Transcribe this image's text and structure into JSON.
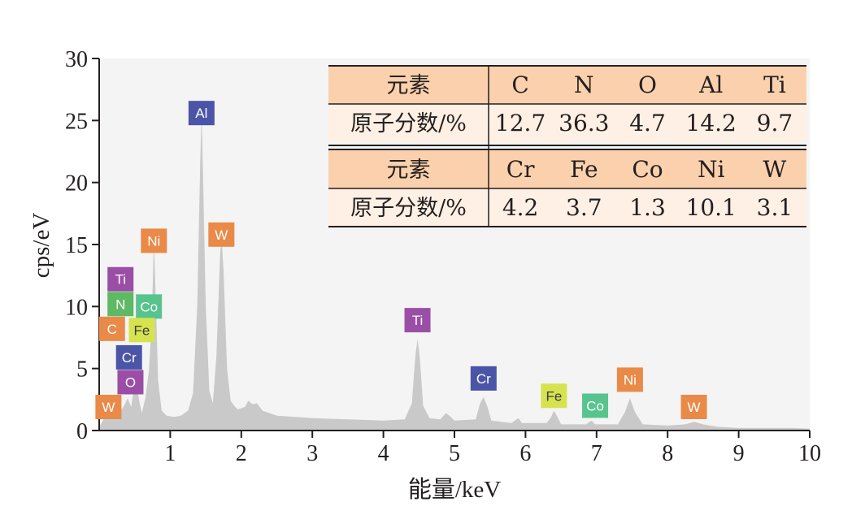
{
  "chart_data": {
    "type": "line",
    "xlabel": "能量/keV",
    "ylabel": "cps/eV",
    "xlim": [
      0,
      10
    ],
    "ylim": [
      0,
      30
    ],
    "x_ticks": [
      1,
      2,
      3,
      4,
      5,
      6,
      7,
      8,
      9,
      10
    ],
    "y_ticks": [
      0,
      5,
      10,
      15,
      20,
      25,
      30
    ],
    "spectrum": [
      [
        0.0,
        0.3
      ],
      [
        0.05,
        0.8
      ],
      [
        0.1,
        1.4
      ],
      [
        0.15,
        1.8
      ],
      [
        0.2,
        1.5
      ],
      [
        0.27,
        2.6
      ],
      [
        0.3,
        1.6
      ],
      [
        0.35,
        2.0
      ],
      [
        0.4,
        2.6
      ],
      [
        0.45,
        1.9
      ],
      [
        0.52,
        4.5
      ],
      [
        0.56,
        2.5
      ],
      [
        0.6,
        1.4
      ],
      [
        0.65,
        2.6
      ],
      [
        0.7,
        4.8
      ],
      [
        0.74,
        9.0
      ],
      [
        0.77,
        15.3
      ],
      [
        0.8,
        10.0
      ],
      [
        0.83,
        4.0
      ],
      [
        0.88,
        1.6
      ],
      [
        0.95,
        1.2
      ],
      [
        1.05,
        1.1
      ],
      [
        1.15,
        1.2
      ],
      [
        1.25,
        1.6
      ],
      [
        1.32,
        3.0
      ],
      [
        1.38,
        10.0
      ],
      [
        1.42,
        21.0
      ],
      [
        1.44,
        25.6
      ],
      [
        1.46,
        21.0
      ],
      [
        1.5,
        10.0
      ],
      [
        1.55,
        3.2
      ],
      [
        1.6,
        2.2
      ],
      [
        1.65,
        6.0
      ],
      [
        1.7,
        14.0
      ],
      [
        1.72,
        15.8
      ],
      [
        1.75,
        13.0
      ],
      [
        1.8,
        5.0
      ],
      [
        1.85,
        2.4
      ],
      [
        1.9,
        2.0
      ],
      [
        1.95,
        1.7
      ],
      [
        2.05,
        1.9
      ],
      [
        2.1,
        2.4
      ],
      [
        2.16,
        2.1
      ],
      [
        2.22,
        2.2
      ],
      [
        2.3,
        1.6
      ],
      [
        2.5,
        1.2
      ],
      [
        3.0,
        1.0
      ],
      [
        3.5,
        0.9
      ],
      [
        4.0,
        0.8
      ],
      [
        4.3,
        0.9
      ],
      [
        4.4,
        2.2
      ],
      [
        4.45,
        6.0
      ],
      [
        4.48,
        7.4
      ],
      [
        4.51,
        6.0
      ],
      [
        4.56,
        2.0
      ],
      [
        4.65,
        1.0
      ],
      [
        4.8,
        0.9
      ],
      [
        4.88,
        1.4
      ],
      [
        4.93,
        1.2
      ],
      [
        5.0,
        0.8
      ],
      [
        5.3,
        0.9
      ],
      [
        5.36,
        2.2
      ],
      [
        5.41,
        2.7
      ],
      [
        5.46,
        2.0
      ],
      [
        5.52,
        0.8
      ],
      [
        5.8,
        0.6
      ],
      [
        5.9,
        1.0
      ],
      [
        5.95,
        0.6
      ],
      [
        6.3,
        0.6
      ],
      [
        6.36,
        1.1
      ],
      [
        6.4,
        1.6
      ],
      [
        6.45,
        1.1
      ],
      [
        6.5,
        0.5
      ],
      [
        6.85,
        0.5
      ],
      [
        6.93,
        0.8
      ],
      [
        6.98,
        0.5
      ],
      [
        7.3,
        0.5
      ],
      [
        7.4,
        1.5
      ],
      [
        7.47,
        2.6
      ],
      [
        7.54,
        1.5
      ],
      [
        7.65,
        0.5
      ],
      [
        8.0,
        0.4
      ],
      [
        8.25,
        0.5
      ],
      [
        8.37,
        0.7
      ],
      [
        8.5,
        0.5
      ],
      [
        8.7,
        0.3
      ],
      [
        9.0,
        0.2
      ],
      [
        9.5,
        0.2
      ],
      [
        9.75,
        0.2
      ],
      [
        10.0,
        0.15
      ]
    ],
    "peak_labels": [
      {
        "label": "Al",
        "x": 1.44,
        "y": 25.6,
        "color": "#4a55a8"
      },
      {
        "label": "W",
        "x": 1.72,
        "y": 15.8,
        "color": "#e98a48"
      },
      {
        "label": "Ni",
        "x": 0.77,
        "y": 15.3,
        "color": "#e98a48"
      },
      {
        "label": "Ti",
        "x": 0.3,
        "y": 12.2,
        "color": "#9a4ea6"
      },
      {
        "label": "N",
        "x": 0.3,
        "y": 10.2,
        "color": "#5db963"
      },
      {
        "label": "Co",
        "x": 0.7,
        "y": 10.0,
        "color": "#57c48e"
      },
      {
        "label": "C",
        "x": 0.18,
        "y": 8.2,
        "color": "#e98a48"
      },
      {
        "label": "Fe",
        "x": 0.6,
        "y": 8.1,
        "color": "#d6e34f"
      },
      {
        "label": "Cr",
        "x": 0.42,
        "y": 5.9,
        "color": "#4a55a8"
      },
      {
        "label": "O",
        "x": 0.44,
        "y": 3.9,
        "color": "#9a4ea6"
      },
      {
        "label": "W",
        "x": 0.13,
        "y": 1.9,
        "color": "#e98a48"
      },
      {
        "label": "Ti",
        "x": 4.48,
        "y": 8.9,
        "color": "#9a4ea6"
      },
      {
        "label": "Cr",
        "x": 5.41,
        "y": 4.2,
        "color": "#4a55a8"
      },
      {
        "label": "Fe",
        "x": 6.4,
        "y": 2.8,
        "color": "#d6e34f"
      },
      {
        "label": "Co",
        "x": 6.98,
        "y": 2.0,
        "color": "#57c48e"
      },
      {
        "label": "Ni",
        "x": 7.47,
        "y": 4.1,
        "color": "#e98a48"
      },
      {
        "label": "W",
        "x": 8.37,
        "y": 1.9,
        "color": "#e98a48"
      }
    ],
    "composition_table": {
      "header_color": "#fbd0ac",
      "row_color": "#fef0e4",
      "rows": [
        {
          "label": "元素",
          "values": [
            "C",
            "N",
            "O",
            "Al",
            "Ti"
          ]
        },
        {
          "label": "原子分数/%",
          "values": [
            "12.7",
            "36.3",
            "4.7",
            "14.2",
            "9.7"
          ]
        },
        {
          "label": "元素",
          "values": [
            "Cr",
            "Fe",
            "Co",
            "Ni",
            "W"
          ]
        },
        {
          "label": "原子分数/%",
          "values": [
            "4.2",
            "3.7",
            "1.3",
            "10.1",
            "3.1"
          ]
        }
      ]
    },
    "spectrum_color": "#c9c9c9",
    "plot_background": "#f2f2f2"
  }
}
